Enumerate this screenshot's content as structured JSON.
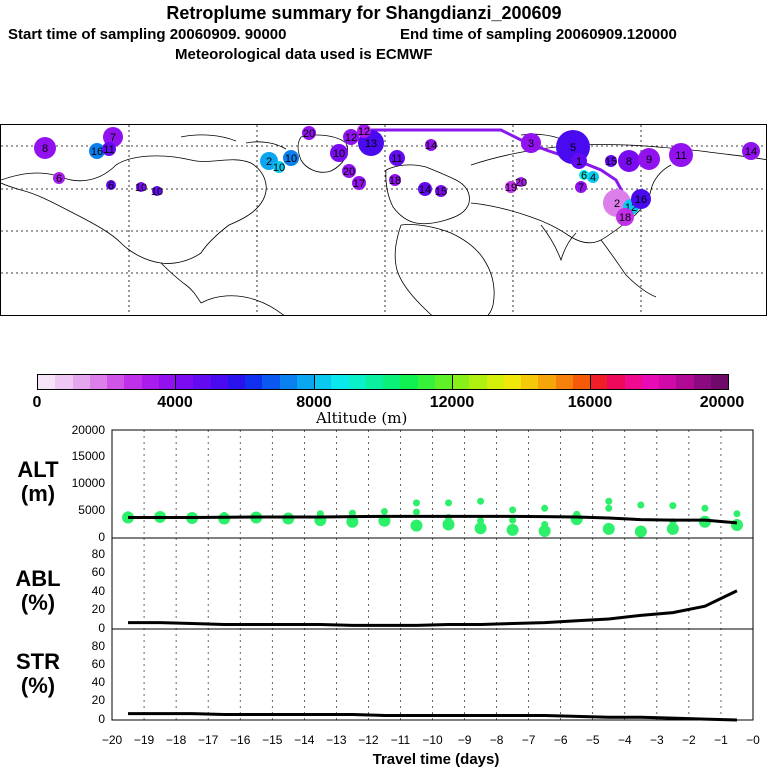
{
  "title": {
    "line1": "Retroplume summary for Shangdianzi_200609",
    "start": "Start time of sampling 20060909. 90000",
    "end": "End time of sampling 20060909.120000",
    "met": "Meteorological data used is ECMWF"
  },
  "map": {
    "description": "world map with retroplume cluster centroids",
    "cluster_labels": [
      "8",
      "7",
      "16",
      "11",
      "6",
      "6",
      "10",
      "10",
      "2",
      "10",
      "10",
      "20",
      "10",
      "12",
      "13",
      "12",
      "20",
      "11",
      "14",
      "14",
      "15",
      "17",
      "18",
      "19",
      "20",
      "3",
      "5",
      "1",
      "2",
      "4",
      "6",
      "7",
      "8",
      "9",
      "11",
      "12",
      "16",
      "18",
      "14",
      "15"
    ]
  },
  "colorbar": {
    "title": "Altitude (m)",
    "ticks": [
      "0",
      "4000",
      "8000",
      "12000",
      "16000",
      "20000"
    ],
    "colors": [
      "#f5e4f8",
      "#eec8f3",
      "#e6a6ef",
      "#dd7fea",
      "#d055e6",
      "#c030e8",
      "#aa1cec",
      "#9212ef",
      "#7a0af0",
      "#620af0",
      "#4a0af0",
      "#2a12ef",
      "#1030f0",
      "#0a58f0",
      "#0a80f0",
      "#0aa6ef",
      "#0ac8ef",
      "#0ae8ec",
      "#0af0c8",
      "#0af0a0",
      "#0af078",
      "#10f050",
      "#36f03a",
      "#60f028",
      "#88f018",
      "#b0f010",
      "#d4f00a",
      "#f0e80a",
      "#f5c80a",
      "#f5a40a",
      "#f5800a",
      "#f55a0a",
      "#f01e28",
      "#ee0a5a",
      "#f00a90",
      "#e80ab4",
      "#d00aa8",
      "#b00a94",
      "#8c0a80",
      "#700a68"
    ]
  },
  "panels": {
    "alt": {
      "label_top": "ALT",
      "label_bottom": "(m)",
      "ticks": [
        "20000",
        "15000",
        "10000",
        "5000",
        "0"
      ]
    },
    "abl": {
      "label_top": "ABL",
      "label_bottom": "(%)",
      "ticks": [
        "80",
        "60",
        "40",
        "20",
        "0"
      ]
    },
    "str": {
      "label_top": "STR",
      "label_bottom": "(%)",
      "ticks": [
        "80",
        "60",
        "40",
        "20",
        "0"
      ]
    }
  },
  "xaxis": {
    "label": "Travel time (days)",
    "ticks": [
      "−20",
      "−19",
      "−18",
      "−17",
      "−16",
      "−15",
      "−14",
      "−13",
      "−12",
      "−11",
      "−10",
      "−9",
      "−8",
      "−7",
      "−6",
      "−5",
      "−4",
      "−3",
      "−2",
      "−1",
      "−0"
    ]
  },
  "chart_data": [
    {
      "type": "line",
      "title": "ALT",
      "ylabel": "ALT (m)",
      "xlabel": "Travel time (days)",
      "x": [
        -19.5,
        -18.5,
        -17.5,
        -16.5,
        -15.5,
        -14.5,
        -13.5,
        -12.5,
        -11.5,
        -10.5,
        -9.5,
        -8.5,
        -7.5,
        -6.5,
        -5.5,
        -4.5,
        -3.5,
        -2.5,
        -1.5,
        -0.5
      ],
      "series": [
        {
          "name": "mean altitude",
          "values": [
            3800,
            3800,
            3800,
            3850,
            3900,
            3900,
            3900,
            3950,
            4000,
            4000,
            4000,
            4000,
            4000,
            3950,
            3900,
            3700,
            3400,
            3300,
            3300,
            2800
          ]
        }
      ],
      "ylim": [
        0,
        20000
      ],
      "xlim": [
        -20,
        0
      ],
      "scatter_clusters": [
        {
          "x": -19.5,
          "values": [
            3800,
            4300
          ]
        },
        {
          "x": -18.5,
          "values": [
            3900
          ]
        },
        {
          "x": -17.5,
          "values": [
            3700
          ]
        },
        {
          "x": -16.5,
          "values": [
            3600,
            4200
          ]
        },
        {
          "x": -15.5,
          "values": [
            3800
          ]
        },
        {
          "x": -14.5,
          "values": [
            3600
          ]
        },
        {
          "x": -13.5,
          "values": [
            3300,
            4500
          ]
        },
        {
          "x": -12.5,
          "values": [
            3000,
            4600
          ]
        },
        {
          "x": -11.5,
          "values": [
            3200,
            4900
          ]
        },
        {
          "x": -10.5,
          "values": [
            2300,
            4800,
            6500
          ]
        },
        {
          "x": -9.5,
          "values": [
            2500,
            3800,
            6500
          ]
        },
        {
          "x": -8.5,
          "values": [
            1800,
            3200,
            6800
          ]
        },
        {
          "x": -7.5,
          "values": [
            1500,
            3300,
            5200
          ]
        },
        {
          "x": -6.5,
          "values": [
            1300,
            2500,
            5500
          ]
        },
        {
          "x": -5.5,
          "values": [
            3500,
            4400
          ]
        },
        {
          "x": -4.5,
          "values": [
            1700,
            5500,
            6800
          ]
        },
        {
          "x": -3.5,
          "values": [
            1200,
            6100
          ]
        },
        {
          "x": -2.5,
          "values": [
            1700,
            3000,
            6000
          ]
        },
        {
          "x": -1.5,
          "values": [
            3000,
            5500
          ]
        },
        {
          "x": -0.5,
          "values": [
            2400,
            4500
          ]
        }
      ]
    },
    {
      "type": "line",
      "title": "ABL",
      "ylabel": "ABL (%)",
      "x": [
        -19.5,
        -18.5,
        -17.5,
        -16.5,
        -15.5,
        -14.5,
        -13.5,
        -12.5,
        -11.5,
        -10.5,
        -9.5,
        -8.5,
        -7.5,
        -6.5,
        -5.5,
        -4.5,
        -3.5,
        -2.5,
        -1.5,
        -0.5
      ],
      "series": [
        {
          "name": "ABL fraction",
          "values": [
            7,
            7,
            6,
            5,
            5,
            5,
            5,
            4,
            4,
            4,
            5,
            5,
            6,
            7,
            9,
            11,
            15,
            18,
            25,
            42
          ]
        }
      ],
      "ylim": [
        0,
        100
      ],
      "xlim": [
        -20,
        0
      ]
    },
    {
      "type": "line",
      "title": "STR",
      "ylabel": "STR (%)",
      "x": [
        -19.5,
        -18.5,
        -17.5,
        -16.5,
        -15.5,
        -14.5,
        -13.5,
        -12.5,
        -11.5,
        -10.5,
        -9.5,
        -8.5,
        -7.5,
        -6.5,
        -5.5,
        -4.5,
        -3.5,
        -2.5,
        -1.5,
        -0.5
      ],
      "series": [
        {
          "name": "stratospheric fraction",
          "values": [
            7,
            7,
            7,
            6,
            6,
            6,
            6,
            6,
            5,
            5,
            5,
            5,
            5,
            5,
            4,
            3,
            3,
            2,
            1,
            0
          ]
        }
      ],
      "ylim": [
        0,
        100
      ],
      "xlim": [
        -20,
        0
      ]
    }
  ]
}
